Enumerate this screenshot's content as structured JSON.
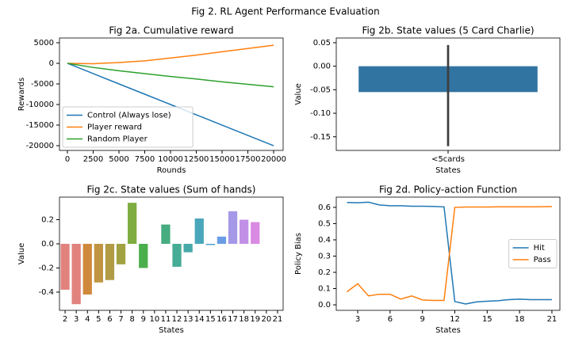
{
  "title": "Fig 2. RL Agent Performance Evaluation",
  "chart_data": [
    {
      "type": "line",
      "title": "Fig 2a. Cumulative reward",
      "x_label": "Rounds",
      "y_label": "Rewards",
      "x": [
        0,
        2500,
        5000,
        7500,
        10000,
        12500,
        15000,
        17500,
        20000
      ],
      "series": [
        {
          "name": "Control (Always lose)",
          "color": "#1f77b4",
          "values": [
            0,
            -2500,
            -5000,
            -7500,
            -10000,
            -12500,
            -15000,
            -17500,
            -20000
          ]
        },
        {
          "name": "Player reward",
          "color": "#ff7f0e",
          "values": [
            0,
            -100,
            200,
            600,
            1300,
            2000,
            2800,
            3600,
            4400
          ]
        },
        {
          "name": "Random Player",
          "color": "#2ca02c",
          "values": [
            0,
            -1000,
            -1800,
            -2500,
            -3200,
            -3800,
            -4500,
            -5100,
            -5700
          ]
        }
      ],
      "xlim": [
        -770,
        20920
      ],
      "xticks": [
        0,
        2500,
        5000,
        7500,
        10000,
        12500,
        15000,
        17500,
        20000
      ],
      "ylim": [
        -21150,
        6150
      ],
      "yticks": [
        -20000,
        -15000,
        -10000,
        -5000,
        0,
        5000
      ],
      "legend": "lower left"
    },
    {
      "type": "bar",
      "title": "Fig 2b. State values (5 Card Charlie)",
      "x_label": "States",
      "y_label": "Value",
      "categories": [
        "<5cards"
      ],
      "values": [
        -0.055
      ],
      "ci_low": [
        -0.17
      ],
      "ci_high": [
        0.045
      ],
      "color": "#3274a1",
      "ylim": [
        -0.179,
        0.06
      ],
      "yticks": [
        -0.15,
        {
          "value": -0.1,
          "label": "-0.10"
        },
        -0.05,
        {
          "value": 0,
          "label": "0.00"
        },
        0.05
      ]
    },
    {
      "type": "bar",
      "title": "Fig 2c. State values (Sum of hands)",
      "x_label": "States",
      "y_label": "Value",
      "categories": [
        "2",
        "3",
        "4",
        "5",
        "6",
        "7",
        "8",
        "9",
        "10",
        "11",
        "12",
        "13",
        "14",
        "15",
        "16",
        "17",
        "18",
        "19",
        "20",
        "21"
      ],
      "values": [
        -0.38,
        -0.5,
        -0.42,
        -0.32,
        -0.3,
        -0.17,
        0.34,
        -0.2,
        0,
        0.16,
        -0.19,
        -0.07,
        0.21,
        -0.01,
        0.06,
        0.27,
        0.2,
        0.18,
        0,
        0
      ],
      "colors": [
        "#e1827d",
        "#e1827d",
        "#d0893b",
        "#c09442",
        "#b29b45",
        "#a3a242",
        "#7fad41",
        "#4bae4d",
        "#45ad75",
        "#45ad80",
        "#47ac96",
        "#48aaa8",
        "#4aa7bb",
        "#4da3cd",
        "#6a9de6",
        "#a598e7",
        "#c28fe6",
        "#d98ae3",
        "#e18bc9",
        "#e38aa7"
      ],
      "ylim": [
        -0.551,
        0.387
      ],
      "yticks": [
        -0.4,
        -0.2,
        {
          "value": 0,
          "label": "0.0"
        },
        0.2
      ]
    },
    {
      "type": "line",
      "title": "Fig 2d. Policy-action Function",
      "x_label": "States",
      "y_label": "Policy Bias",
      "x": [
        2,
        3,
        4,
        5,
        6,
        7,
        8,
        9,
        10,
        11,
        12,
        13,
        14,
        15,
        16,
        17,
        18,
        19,
        20,
        21
      ],
      "series": [
        {
          "name": "Hit",
          "color": "#1f77b4",
          "values": [
            0.63,
            0.628,
            0.632,
            0.615,
            0.61,
            0.61,
            0.607,
            0.607,
            0.606,
            0.603,
            0.02,
            0.005,
            0.018,
            0.022,
            0.025,
            0.032,
            0.035,
            0.032,
            0.032,
            0.032
          ]
        },
        {
          "name": "Pass",
          "color": "#ff7f0e",
          "values": [
            0.08,
            0.13,
            0.055,
            0.065,
            0.065,
            0.035,
            0.055,
            0.03,
            0.027,
            0.027,
            0.6,
            0.602,
            0.602,
            0.602,
            0.603,
            0.603,
            0.603,
            0.603,
            0.604,
            0.605
          ]
        }
      ],
      "xlim": [
        1.01,
        21.74
      ],
      "xticks": [
        3,
        6,
        9,
        12,
        15,
        18,
        21
      ],
      "ylim": [
        -0.034,
        0.663
      ],
      "yticks": [
        {
          "value": 0,
          "label": "0.0"
        },
        0.1,
        0.2,
        0.3,
        0.4,
        0.5,
        0.6
      ],
      "legend": "center right"
    }
  ]
}
